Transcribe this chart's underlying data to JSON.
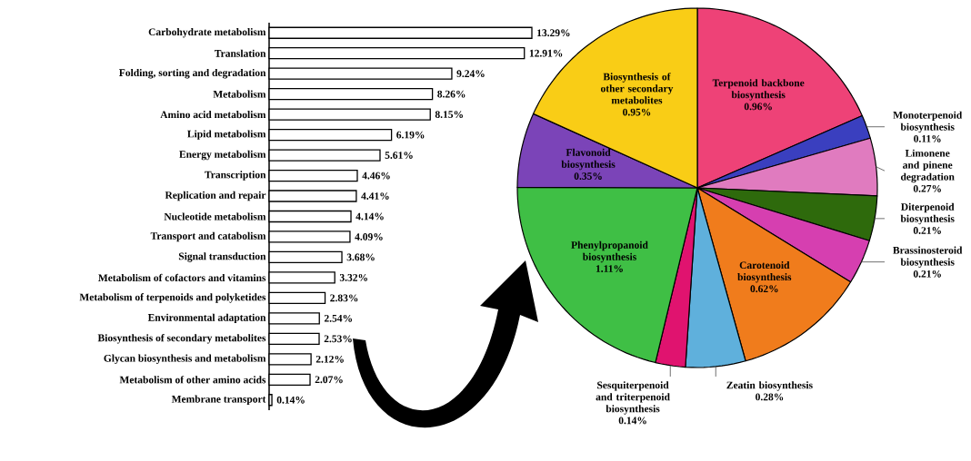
{
  "chart_data": [
    {
      "type": "bar",
      "orientation": "horizontal",
      "tick_labels": "y",
      "color": "#ffffff",
      "categories": [
        "Carbohydrate metabolism",
        "Translation",
        "Folding, sorting and degradation",
        "Metabolism",
        "Amino acid metabolism",
        "Lipid metabolism",
        "Energy metabolism",
        "Transcription",
        "Replication and repair",
        "Nucleotide metabolism",
        "Transport and catabolism",
        "Signal transduction",
        "Metabolism of cofactors and vitamins",
        "Metabolism of terpenoids and polyketides",
        "Environmental adaptation",
        "Biosynthesis of secondary metabolites",
        "Glycan biosynthesis  and metabolism",
        "Metabolism of other amino acids",
        "Membrane transport"
      ],
      "values": [
        13.29,
        12.91,
        9.24,
        8.26,
        8.15,
        6.19,
        5.61,
        4.46,
        4.41,
        4.14,
        4.09,
        3.68,
        3.32,
        2.83,
        2.54,
        2.53,
        2.12,
        2.07,
        0.14
      ],
      "value_labels": [
        "13.29%",
        "12.91%",
        "9.24%",
        "8.26%",
        "8.15%",
        "6.19%",
        "5.61%",
        "4.46%",
        "4.41%",
        "4.14%",
        "4.09%",
        "3.68%",
        "3.32%",
        "2.83%",
        "2.54%",
        "2.53%",
        "2.12%",
        "2.07%",
        "0.14%"
      ]
    },
    {
      "type": "pie",
      "categories": [
        "Terpenoid backbone biosynthesis",
        "Monoterpenoid biosynthesis",
        "Limonene and pinene degradation",
        "Diterpenoid biosynthesis",
        "Brassinosteroid biosynthesis",
        "Carotenoid biosynthesis",
        "Zeatin biosynthesis",
        "Sesquiterpenoid and triterpenoid biosynthesis",
        "Phenylpropanoid biosynthesis",
        "Flavonoid biosynthesis",
        "Biosynthesis of other secondary metabolites"
      ],
      "values": [
        0.96,
        0.11,
        0.27,
        0.21,
        0.21,
        0.62,
        0.28,
        0.14,
        1.11,
        0.35,
        0.95
      ],
      "value_labels": [
        "0.96%",
        "0.11%",
        "0.27%",
        "0.21%",
        "0.21%",
        "0.62%",
        "0.28%",
        "0.14%",
        "1.11%",
        "0.35%",
        "0.95%"
      ],
      "colors": [
        "#ee4277",
        "#3a3fbf",
        "#e07bbf",
        "#2e6a0c",
        "#d63fb0",
        "#f07c1c",
        "#5fb0dc",
        "#e0136f",
        "#3fbf45",
        "#7b44b8",
        "#f9cd16"
      ]
    }
  ]
}
